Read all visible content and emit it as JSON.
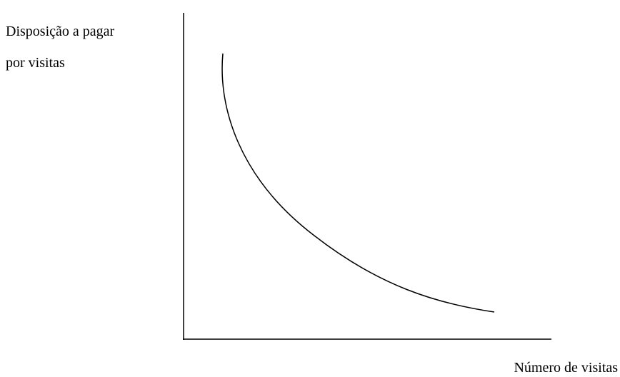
{
  "y_axis_label": [
    "Disposição a pagar",
    "por visitas"
  ],
  "x_axis_label": "Número de visitas"
}
